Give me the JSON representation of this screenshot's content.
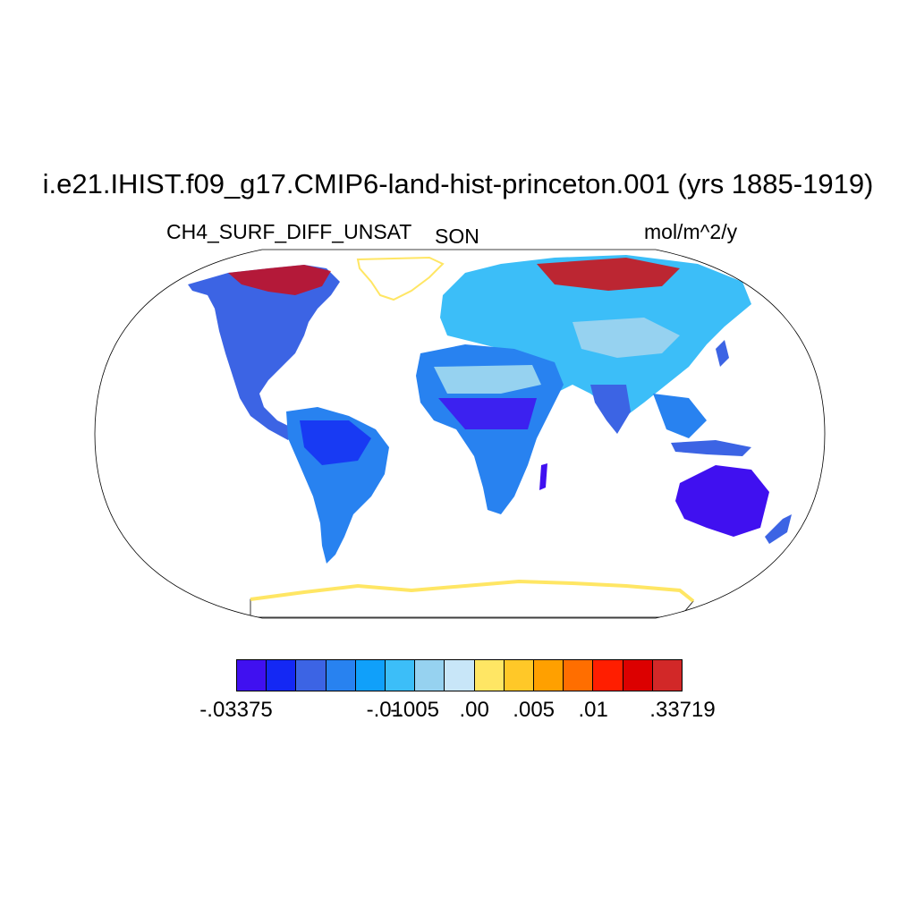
{
  "title": "i.e21.IHIST.f09_g17.CMIP6-land-hist-princeton.001 (yrs 1885-1919)",
  "variable": "CH4_SURF_DIFF_UNSAT",
  "season": "SON",
  "units": "mol/m^2/y",
  "projection": "Robinson",
  "colorbar": {
    "colors": [
      "#4010f0",
      "#1428f4",
      "#3c64e4",
      "#2882f0",
      "#10a0fa",
      "#3cbef8",
      "#96d2f0",
      "#c8e6f8",
      "#ffe664",
      "#ffc828",
      "#ffa000",
      "#ff6e00",
      "#ff1e00",
      "#dc0000",
      "#d22828"
    ],
    "labels": [
      {
        "text": "-.03375",
        "boundary": 0
      },
      {
        "text": "-.01",
        "boundary": 5
      },
      {
        "text": "-.005",
        "boundary": 6
      },
      {
        "text": ".00",
        "boundary": 8
      },
      {
        "text": ".005",
        "boundary": 10
      },
      {
        "text": ".01",
        "boundary": 12
      },
      {
        "text": ".33719",
        "boundary": 15
      }
    ]
  }
}
